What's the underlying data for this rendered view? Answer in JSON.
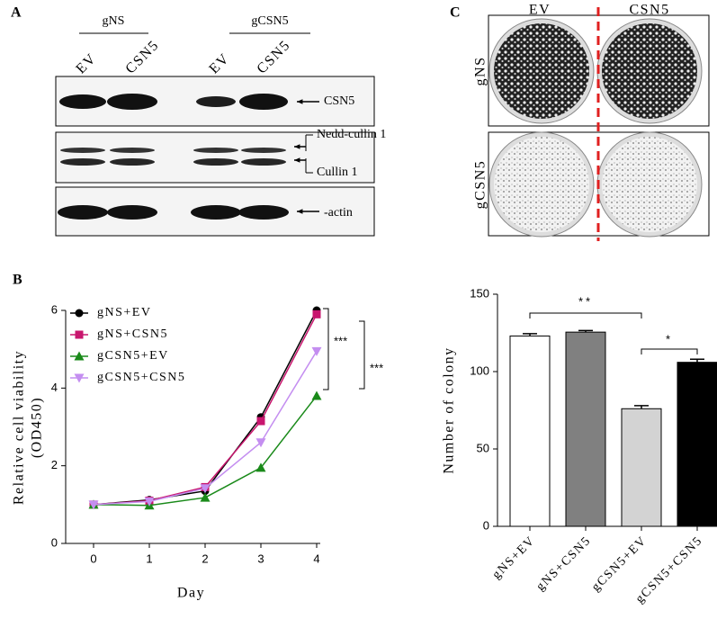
{
  "panels": {
    "a": {
      "label": "A",
      "groups": [
        "gNS",
        "gCSN5"
      ],
      "lanes": [
        "EV",
        "CSN5",
        "EV",
        "CSN5"
      ],
      "bands": [
        "CSN5",
        "Nedd-cullin 1",
        "Cullin 1",
        "-actin"
      ]
    },
    "b": {
      "label": "B"
    },
    "c": {
      "label": "C",
      "columns": [
        "EV",
        "CSN5"
      ],
      "rows": [
        "gNS",
        "gCSN5"
      ]
    }
  },
  "chart_data": [
    {
      "type": "line",
      "x": [
        0,
        1,
        2,
        3,
        4
      ],
      "series": [
        {
          "name": "gNS+EV",
          "color": "#000000",
          "marker": "circle",
          "values": [
            1.0,
            1.12,
            1.35,
            3.25,
            6.0
          ]
        },
        {
          "name": "gNS+CSN5",
          "color": "#c8166e",
          "marker": "square",
          "values": [
            1.0,
            1.1,
            1.45,
            3.15,
            5.9
          ]
        },
        {
          "name": "gCSN5+EV",
          "color": "#1a8a1a",
          "marker": "triangle",
          "values": [
            1.0,
            0.98,
            1.18,
            1.95,
            3.8
          ]
        },
        {
          "name": "gCSN5+CSN5",
          "color": "#c48ef0",
          "marker": "triangle-down",
          "values": [
            1.0,
            1.08,
            1.42,
            2.6,
            4.95
          ]
        }
      ],
      "xlabel": "Day",
      "ylabel": [
        "Relative cell viability",
        "(OD450)"
      ],
      "xlim": [
        -0.5,
        4
      ],
      "ylim": [
        0,
        6
      ],
      "xticks": [
        0,
        1,
        2,
        3,
        4
      ],
      "yticks": [
        0,
        2,
        4,
        6
      ],
      "annotations": [
        "***",
        "***"
      ]
    },
    {
      "type": "bar",
      "categories": [
        "gNS+EV",
        "gNS+CSN5",
        "gCSN5+EV",
        "gCSN5+CSN5"
      ],
      "values": [
        123,
        125.5,
        76,
        106
      ],
      "errors": [
        1.5,
        1,
        2,
        2
      ],
      "colors": [
        "#ffffff",
        "#808080",
        "#d3d3d3",
        "#000000"
      ],
      "ylabel": "Number of colony",
      "ylim": [
        0,
        150
      ],
      "yticks": [
        0,
        50,
        100,
        150
      ],
      "annotations": [
        "**",
        "*"
      ]
    }
  ]
}
